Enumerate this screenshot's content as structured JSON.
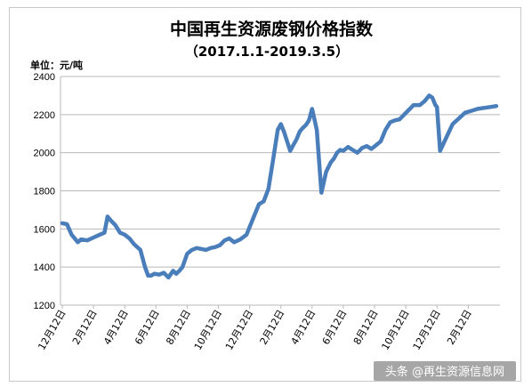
{
  "chart_data": {
    "type": "line",
    "title": "中国再生资源废钢价格指数",
    "subtitle": "（2017.1.1-2019.3.5）",
    "ylabel": "单位：元/吨",
    "ylim": [
      1200,
      2400
    ],
    "yticks": [
      1200,
      1400,
      1600,
      1800,
      2000,
      2200,
      2400
    ],
    "xticks": [
      "12月12日",
      "2月12日",
      "4月12日",
      "6月12日",
      "8月12日",
      "10月12日",
      "12月12日",
      "2月12日",
      "4月12日",
      "6月12日",
      "8月12日",
      "10月12日",
      "12月12日",
      "2月12日"
    ],
    "grid": true,
    "line_color": "#4a7ebb",
    "series": [
      {
        "x": [
          0.0,
          0.15,
          0.3,
          0.5,
          0.6,
          0.8,
          1.0,
          1.2,
          1.35,
          1.45,
          1.55,
          1.7,
          1.85,
          2.0,
          2.15,
          2.3,
          2.5,
          2.65,
          2.75,
          2.85,
          2.95,
          3.1,
          3.25,
          3.4,
          3.55,
          3.65,
          3.75,
          3.85,
          4.0,
          4.15,
          4.3,
          4.45,
          4.6,
          4.75,
          4.9,
          5.05,
          5.2,
          5.35,
          5.5,
          5.7,
          5.9,
          6.1,
          6.3,
          6.45,
          6.6,
          6.75,
          6.9,
          7.0,
          7.1,
          7.2,
          7.3,
          7.4,
          7.5,
          7.6,
          7.7,
          7.8,
          7.9,
          8.0,
          8.15,
          8.3,
          8.45,
          8.6,
          8.7,
          8.8,
          8.9,
          9.0,
          9.15,
          9.3,
          9.45,
          9.6,
          9.75,
          9.9,
          10.05,
          10.2,
          10.35,
          10.5,
          10.65,
          10.8,
          10.95,
          11.1,
          11.25,
          11.45,
          11.6,
          11.75,
          11.85,
          11.95,
          12.0,
          12.1,
          12.3,
          12.5,
          12.7,
          12.9,
          13.1,
          13.3,
          13.5,
          13.7,
          13.9
        ],
        "y": [
          1630,
          1625,
          1570,
          1530,
          1545,
          1540,
          1555,
          1570,
          1580,
          1665,
          1645,
          1620,
          1580,
          1570,
          1550,
          1520,
          1490,
          1400,
          1355,
          1355,
          1365,
          1360,
          1370,
          1345,
          1380,
          1365,
          1380,
          1400,
          1470,
          1490,
          1500,
          1495,
          1490,
          1500,
          1505,
          1515,
          1540,
          1550,
          1530,
          1545,
          1570,
          1650,
          1730,
          1745,
          1810,
          1960,
          2120,
          2150,
          2110,
          2060,
          2010,
          2040,
          2070,
          2110,
          2130,
          2145,
          2170,
          2230,
          2120,
          1790,
          1900,
          1950,
          1970,
          2000,
          2015,
          2010,
          2030,
          2015,
          2000,
          2025,
          2035,
          2020,
          2040,
          2060,
          2120,
          2160,
          2170,
          2175,
          2200,
          2225,
          2250,
          2250,
          2270,
          2300,
          2290,
          2250,
          2240,
          2010,
          2080,
          2150,
          2180,
          2210,
          2220,
          2230,
          2235,
          2240,
          2245
        ]
      }
    ]
  },
  "watermark": "头条 @再生资源信息网"
}
